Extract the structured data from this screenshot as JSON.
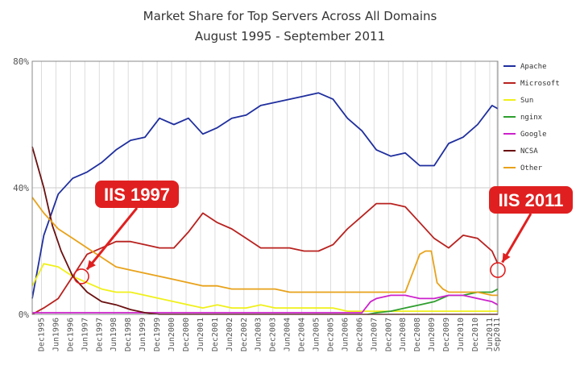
{
  "chart_data": {
    "type": "line",
    "title": "Market Share for Top Servers Across All Domains",
    "subtitle": "August 1995 - September 2011",
    "xlabel": "",
    "ylabel": "",
    "ylim": [
      0,
      80
    ],
    "ytick_labels": [
      "0%",
      "40%",
      "80%"
    ],
    "xlim": [
      1995.6,
      2011.7
    ],
    "x_tick_labels": [
      {
        "label": "Dec1995",
        "x": 1995.92
      },
      {
        "label": "Jun1996",
        "x": 1996.42
      },
      {
        "label": "Dec1996",
        "x": 1996.92
      },
      {
        "label": "Jun1997",
        "x": 1997.42
      },
      {
        "label": "Dec1997",
        "x": 1997.92
      },
      {
        "label": "Jun1998",
        "x": 1998.42
      },
      {
        "label": "Dec1998",
        "x": 1998.92
      },
      {
        "label": "Jun1999",
        "x": 1999.42
      },
      {
        "label": "Dec1999",
        "x": 1999.92
      },
      {
        "label": "Jun2000",
        "x": 2000.42
      },
      {
        "label": "Dec2000",
        "x": 2000.92
      },
      {
        "label": "Jun2001",
        "x": 2001.42
      },
      {
        "label": "Dec2001",
        "x": 2001.92
      },
      {
        "label": "Jun2002",
        "x": 2002.42
      },
      {
        "label": "Dec2002",
        "x": 2002.92
      },
      {
        "label": "Jun2003",
        "x": 2003.42
      },
      {
        "label": "Dec2003",
        "x": 2003.92
      },
      {
        "label": "Jun2004",
        "x": 2004.42
      },
      {
        "label": "Dec2004",
        "x": 2004.92
      },
      {
        "label": "Jun2005",
        "x": 2005.42
      },
      {
        "label": "Dec2005",
        "x": 2005.92
      },
      {
        "label": "Jun2006",
        "x": 2006.42
      },
      {
        "label": "Dec2006",
        "x": 2006.92
      },
      {
        "label": "Jun2007",
        "x": 2007.42
      },
      {
        "label": "Dec2007",
        "x": 2007.92
      },
      {
        "label": "Jun2008",
        "x": 2008.42
      },
      {
        "label": "Dec2008",
        "x": 2008.92
      },
      {
        "label": "Jun2009",
        "x": 2009.42
      },
      {
        "label": "Dec2009",
        "x": 2009.92
      },
      {
        "label": "Jun2010",
        "x": 2010.42
      },
      {
        "label": "Dec2010",
        "x": 2010.92
      },
      {
        "label": "Jun2011",
        "x": 2011.42
      },
      {
        "label": "Sep2011",
        "x": 2011.67
      }
    ],
    "grid": true,
    "legend": "right",
    "series": [
      {
        "name": "Apache",
        "color": "#1f2f9e",
        "x": [
          1995.6,
          1996.0,
          1996.5,
          1997.0,
          1997.5,
          1998.0,
          1998.5,
          1999.0,
          1999.5,
          2000.0,
          2000.5,
          2001.0,
          2001.5,
          2002.0,
          2002.5,
          2003.0,
          2003.5,
          2004.0,
          2004.5,
          2005.0,
          2005.5,
          2006.0,
          2006.5,
          2007.0,
          2007.5,
          2008.0,
          2008.5,
          2009.0,
          2009.5,
          2010.0,
          2010.5,
          2011.0,
          2011.5,
          2011.7
        ],
        "y": [
          5,
          25,
          38,
          43,
          45,
          48,
          52,
          55,
          56,
          62,
          60,
          62,
          57,
          59,
          62,
          63,
          66,
          67,
          68,
          69,
          70,
          68,
          62,
          58,
          52,
          50,
          51,
          47,
          47,
          54,
          56,
          60,
          66,
          65
        ]
      },
      {
        "name": "Microsoft",
        "color": "#b8221f",
        "x": [
          1995.6,
          1996.0,
          1996.5,
          1997.0,
          1997.5,
          1998.0,
          1998.5,
          1999.0,
          1999.5,
          2000.0,
          2000.5,
          2001.0,
          2001.5,
          2002.0,
          2002.5,
          2003.0,
          2003.5,
          2004.0,
          2004.5,
          2005.0,
          2005.5,
          2006.0,
          2006.5,
          2007.0,
          2007.5,
          2008.0,
          2008.5,
          2009.0,
          2009.5,
          2010.0,
          2010.5,
          2011.0,
          2011.5,
          2011.7
        ],
        "y": [
          0,
          2,
          5,
          12,
          19,
          21,
          23,
          23,
          22,
          21,
          21,
          26,
          32,
          29,
          27,
          24,
          21,
          21,
          21,
          20,
          20,
          22,
          27,
          31,
          35,
          35,
          34,
          29,
          24,
          21,
          25,
          24,
          20,
          16
        ]
      },
      {
        "name": "Sun",
        "color": "#f0f01a",
        "x": [
          1995.6,
          1996.0,
          1996.5,
          1997.0,
          1997.5,
          1998.0,
          1998.5,
          1999.0,
          1999.5,
          2000.0,
          2000.5,
          2001.0,
          2001.5,
          2002.0,
          2002.5,
          2003.0,
          2003.5,
          2004.0,
          2004.5,
          2005.0,
          2005.5,
          2006.0,
          2006.5,
          2007.0,
          2007.5,
          2008.0,
          2008.5,
          2009.0,
          2009.5,
          2010.0,
          2010.5,
          2011.0,
          2011.5,
          2011.7
        ],
        "y": [
          9,
          16,
          15,
          12,
          10,
          8,
          7,
          7,
          6,
          5,
          4,
          3,
          2,
          3,
          2,
          2,
          3,
          2,
          2,
          2,
          2,
          2,
          1,
          1,
          1,
          1,
          1,
          1,
          1,
          1,
          1,
          1,
          1,
          1
        ]
      },
      {
        "name": "nginx",
        "color": "#2e9e2e",
        "x": [
          2007.2,
          2007.5,
          2008.0,
          2008.5,
          2009.0,
          2009.5,
          2010.0,
          2010.5,
          2011.0,
          2011.5,
          2011.7
        ],
        "y": [
          0,
          0.5,
          1,
          2,
          3,
          4,
          6,
          6,
          7,
          7,
          8
        ]
      },
      {
        "name": "Google",
        "color": "#cc22cc",
        "x": [
          1995.6,
          2006.0,
          2007.0,
          2007.3,
          2007.5,
          2008.0,
          2008.5,
          2009.0,
          2009.5,
          2010.0,
          2010.5,
          2011.0,
          2011.5,
          2011.7
        ],
        "y": [
          0.5,
          0.5,
          0.5,
          4,
          5,
          6,
          6,
          5,
          5,
          6,
          6,
          5,
          4,
          3
        ]
      },
      {
        "name": "NCSA",
        "color": "#6b1010",
        "x": [
          1995.6,
          1996.0,
          1996.3,
          1996.6,
          1997.0,
          1997.5,
          1998.0,
          1998.5,
          1999.0,
          1999.5,
          2000.0,
          2011.7
        ],
        "y": [
          53,
          40,
          28,
          20,
          12,
          7,
          4,
          3,
          1.5,
          0.5,
          0,
          0
        ]
      },
      {
        "name": "Other",
        "color": "#e8a21a",
        "x": [
          1995.6,
          1996.0,
          1996.5,
          1997.0,
          1997.5,
          1998.0,
          1998.5,
          1999.0,
          1999.5,
          2000.0,
          2000.5,
          2001.0,
          2001.5,
          2002.0,
          2002.5,
          2003.0,
          2003.5,
          2004.0,
          2004.5,
          2005.0,
          2005.5,
          2006.0,
          2006.5,
          2007.0,
          2007.5,
          2008.0,
          2008.5,
          2009.0,
          2009.2,
          2009.4,
          2009.6,
          2009.8,
          2010.0,
          2010.5,
          2011.0,
          2011.5,
          2011.7
        ],
        "y": [
          37,
          32,
          27,
          24,
          21,
          18,
          15,
          14,
          13,
          12,
          11,
          10,
          9,
          9,
          8,
          8,
          8,
          8,
          7,
          7,
          7,
          7,
          7,
          7,
          7,
          7,
          7,
          19,
          20,
          20,
          10,
          8,
          7,
          7,
          7,
          6,
          6
        ]
      }
    ],
    "annotations": [
      {
        "label": "IIS 1997",
        "x": 1997.3,
        "y": 12
      },
      {
        "label": "IIS 2011",
        "x": 2011.7,
        "y": 14
      }
    ]
  }
}
